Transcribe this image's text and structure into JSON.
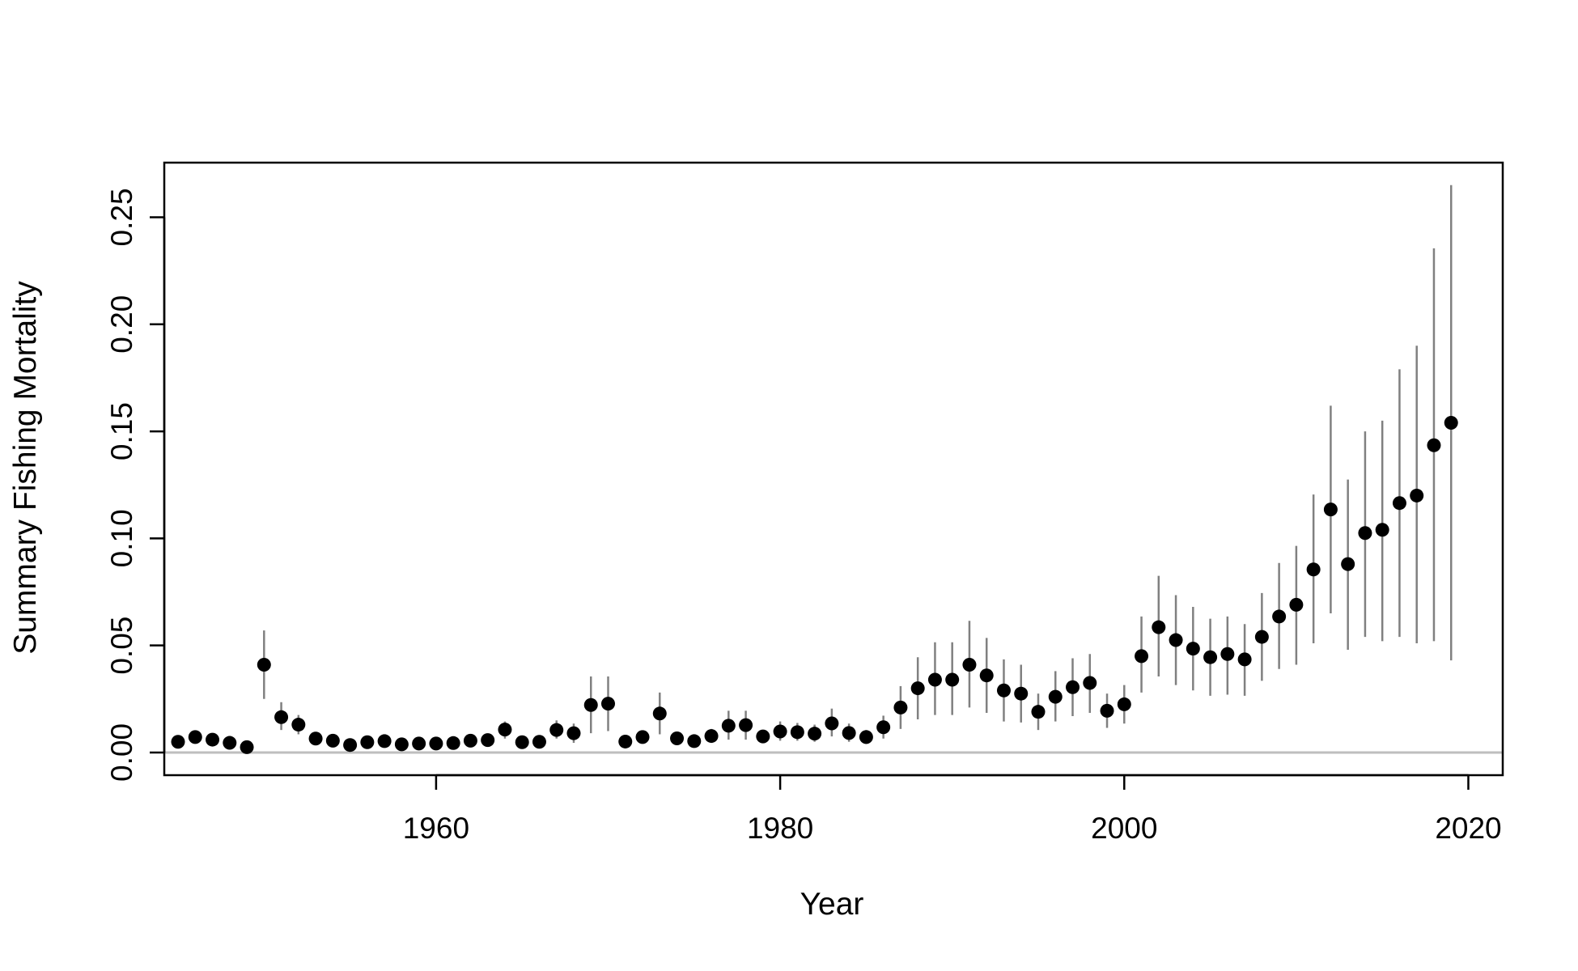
{
  "chart_data": {
    "type": "scatter",
    "title": "",
    "xlabel": "Year",
    "ylabel": "Summary Fishing Mortality",
    "xlim": [
      1944.2,
      2022
    ],
    "ylim": [
      -0.0106,
      0.2755
    ],
    "x_ticks": [
      1960,
      1980,
      2000,
      2020
    ],
    "x_tick_labels": [
      "1960",
      "1980",
      "2000",
      "2020"
    ],
    "y_ticks": [
      0,
      0.05,
      0.1,
      0.15,
      0.2,
      0.25
    ],
    "y_tick_labels": [
      "0.00",
      "0.05",
      "0.10",
      "0.15",
      "0.20",
      "0.25"
    ],
    "reference_line": 0,
    "grid": false,
    "legend": "none",
    "colors": {
      "point": "#000000",
      "error_bar": "#808080",
      "reference_line": "#bebebe",
      "box": "#000000"
    },
    "series": [
      {
        "x": [
          1945,
          1946,
          1947,
          1948,
          1949,
          1950,
          1951,
          1952,
          1953,
          1954,
          1955,
          1956,
          1957,
          1958,
          1959,
          1960,
          1961,
          1962,
          1963,
          1964,
          1965,
          1966,
          1967,
          1968,
          1969,
          1970,
          1971,
          1972,
          1973,
          1974,
          1975,
          1976,
          1977,
          1978,
          1979,
          1980,
          1981,
          1982,
          1983,
          1984,
          1985,
          1986,
          1987,
          1988,
          1989,
          1990,
          1991,
          1992,
          1993,
          1994,
          1995,
          1996,
          1997,
          1998,
          1999,
          2000,
          2001,
          2002,
          2003,
          2004,
          2005,
          2006,
          2007,
          2008,
          2009,
          2010,
          2011,
          2012,
          2013,
          2014,
          2015,
          2016,
          2017,
          2018,
          2019
        ],
        "y": [
          0.005,
          0.0072,
          0.006,
          0.0045,
          0.0025,
          0.041,
          0.0165,
          0.013,
          0.0065,
          0.0055,
          0.0035,
          0.0048,
          0.0053,
          0.0038,
          0.0042,
          0.0042,
          0.0044,
          0.0055,
          0.0058,
          0.0107,
          0.0048,
          0.005,
          0.0105,
          0.009,
          0.0222,
          0.0228,
          0.0051,
          0.0072,
          0.0182,
          0.0066,
          0.0053,
          0.0077,
          0.0125,
          0.0128,
          0.0075,
          0.0098,
          0.0095,
          0.0088,
          0.0136,
          0.0091,
          0.0072,
          0.0118,
          0.021,
          0.03,
          0.034,
          0.034,
          0.041,
          0.036,
          0.029,
          0.0275,
          0.019,
          0.026,
          0.0305,
          0.0325,
          0.0195,
          0.0225,
          0.045,
          0.0585,
          0.0525,
          0.0485,
          0.0445,
          0.046,
          0.0435,
          0.054,
          0.0635,
          0.069,
          0.0855,
          0.1135,
          0.088,
          0.1025,
          0.104,
          0.1165,
          0.12,
          0.1435,
          0.154
        ],
        "lower": [
          0.003,
          0.005,
          0.004,
          0.003,
          0.0015,
          0.025,
          0.0105,
          0.0085,
          0.0045,
          0.0035,
          0.0022,
          0.003,
          0.0035,
          0.0025,
          0.0028,
          0.0028,
          0.003,
          0.0035,
          0.0038,
          0.0065,
          0.003,
          0.0032,
          0.0065,
          0.0045,
          0.009,
          0.01,
          0.0032,
          0.0045,
          0.0085,
          0.0042,
          0.0032,
          0.0045,
          0.006,
          0.006,
          0.0045,
          0.0055,
          0.0055,
          0.005,
          0.0075,
          0.005,
          0.004,
          0.0065,
          0.011,
          0.0155,
          0.0175,
          0.0175,
          0.021,
          0.0185,
          0.0145,
          0.014,
          0.0105,
          0.0145,
          0.017,
          0.0185,
          0.0115,
          0.0135,
          0.028,
          0.0355,
          0.0315,
          0.029,
          0.0265,
          0.027,
          0.0265,
          0.0335,
          0.039,
          0.041,
          0.051,
          0.065,
          0.048,
          0.054,
          0.052,
          0.054,
          0.051,
          0.052,
          0.043
        ],
        "upper": [
          0.007,
          0.0095,
          0.008,
          0.006,
          0.0035,
          0.057,
          0.0235,
          0.0175,
          0.0085,
          0.0075,
          0.0048,
          0.0065,
          0.007,
          0.005,
          0.0056,
          0.0056,
          0.0058,
          0.0075,
          0.0078,
          0.0145,
          0.0066,
          0.0068,
          0.015,
          0.0135,
          0.0355,
          0.0355,
          0.007,
          0.01,
          0.028,
          0.009,
          0.0074,
          0.011,
          0.0195,
          0.0195,
          0.0105,
          0.0145,
          0.0138,
          0.013,
          0.0205,
          0.0135,
          0.0105,
          0.0172,
          0.031,
          0.0445,
          0.0515,
          0.0515,
          0.0615,
          0.0535,
          0.0435,
          0.041,
          0.0275,
          0.038,
          0.044,
          0.046,
          0.0275,
          0.0315,
          0.0635,
          0.0825,
          0.0735,
          0.068,
          0.0625,
          0.0635,
          0.06,
          0.0745,
          0.0885,
          0.0965,
          0.1205,
          0.162,
          0.1275,
          0.15,
          0.155,
          0.179,
          0.19,
          0.2355,
          0.265
        ]
      }
    ]
  }
}
